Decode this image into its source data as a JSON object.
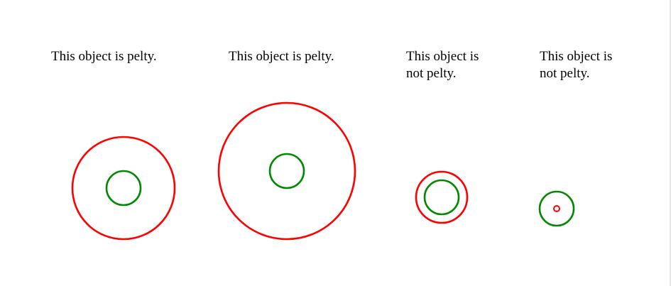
{
  "objects": [
    {
      "caption": "This object is pelty.",
      "outer_color": "#ff0000",
      "inner_color": "#008800"
    },
    {
      "caption": "This object is pelty.",
      "outer_color": "#ff0000",
      "inner_color": "#008800"
    },
    {
      "caption": "This object is not pelty.",
      "outer_color": "#ff0000",
      "inner_color": "#008800"
    },
    {
      "caption": "This object is not pelty.",
      "outer_color": "#008800",
      "inner_color": "#ff0000"
    }
  ]
}
